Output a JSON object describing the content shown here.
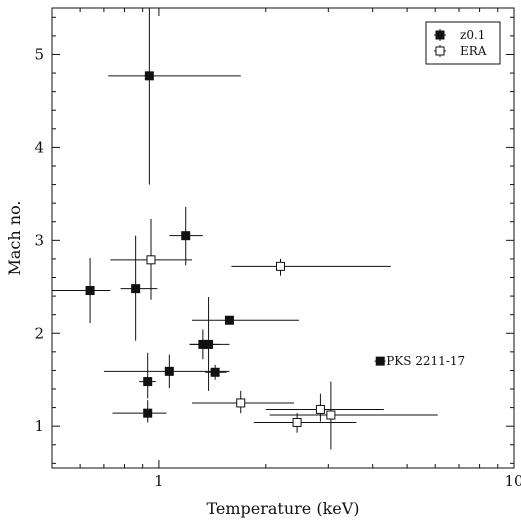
{
  "chart_data": {
    "type": "scatter",
    "xlabel": "Temperature (keV)",
    "ylabel": "Mach no.",
    "xscale": "log",
    "xlim": [
      0.5,
      10
    ],
    "ylim": [
      0.55,
      5.5
    ],
    "xticks": [
      {
        "value": 1,
        "label": "1"
      },
      {
        "value": 10,
        "label": "10"
      }
    ],
    "yticks": [
      {
        "value": 1,
        "label": "1"
      },
      {
        "value": 2,
        "label": "2"
      },
      {
        "value": 3,
        "label": "3"
      },
      {
        "value": 4,
        "label": "4"
      },
      {
        "value": 5,
        "label": "5"
      }
    ],
    "grid": false,
    "legend_position": "top-right",
    "series": [
      {
        "name": "z0.1",
        "marker": "filled-square",
        "color": "#111111",
        "points": [
          {
            "x": 0.94,
            "y": 4.77,
            "xerr": [
              0.72,
              1.7
            ],
            "yerr": [
              3.6,
              5.5
            ]
          },
          {
            "x": 1.19,
            "y": 3.05,
            "xerr": [
              1.07,
              1.33
            ],
            "yerr": [
              2.73,
              3.36
            ]
          },
          {
            "x": 0.64,
            "y": 2.46,
            "xerr": [
              0.5,
              0.73
            ],
            "yerr": [
              2.11,
              2.81
            ]
          },
          {
            "x": 0.86,
            "y": 2.48,
            "xerr": [
              0.78,
              0.99
            ],
            "yerr": [
              1.92,
              3.05
            ]
          },
          {
            "x": 1.58,
            "y": 2.14,
            "xerr": [
              1.24,
              2.48
            ],
            "yerr": [
              2.14,
              2.14
            ]
          },
          {
            "x": 1.33,
            "y": 1.88,
            "xerr": [
              1.22,
              1.48
            ],
            "yerr": [
              1.72,
              2.04
            ]
          },
          {
            "x": 1.38,
            "y": 1.88,
            "xerr": [
              1.22,
              1.58
            ],
            "yerr": [
              1.38,
              2.39
            ]
          },
          {
            "x": 1.07,
            "y": 1.59,
            "xerr": [
              0.7,
              1.58
            ],
            "yerr": [
              1.41,
              1.77
            ]
          },
          {
            "x": 0.93,
            "y": 1.48,
            "xerr": [
              0.88,
              0.98
            ],
            "yerr": [
              1.3,
              1.79
            ]
          },
          {
            "x": 1.44,
            "y": 1.58,
            "xerr": [
              1.35,
              1.55
            ],
            "yerr": [
              1.5,
              1.66
            ]
          },
          {
            "x": 0.93,
            "y": 1.14,
            "xerr": [
              0.74,
              1.05
            ],
            "yerr": [
              1.04,
              1.28
            ]
          }
        ]
      },
      {
        "name": "ERA",
        "marker": "open-square",
        "color": "#111111",
        "points": [
          {
            "x": 0.95,
            "y": 2.79,
            "xerr": [
              0.73,
              1.24
            ],
            "yerr": [
              2.36,
              3.23
            ]
          },
          {
            "x": 2.2,
            "y": 2.72,
            "xerr": [
              1.6,
              4.5
            ],
            "yerr": [
              2.62,
              2.8
            ]
          },
          {
            "x": 1.7,
            "y": 1.25,
            "xerr": [
              1.24,
              2.4
            ],
            "yerr": [
              1.14,
              1.38
            ]
          },
          {
            "x": 2.45,
            "y": 1.04,
            "xerr": [
              1.85,
              3.6
            ],
            "yerr": [
              0.93,
              1.14
            ]
          },
          {
            "x": 2.85,
            "y": 1.18,
            "xerr": [
              2.0,
              4.3
            ],
            "yerr": [
              1.05,
              1.35
            ]
          },
          {
            "x": 3.05,
            "y": 1.12,
            "xerr": [
              2.05,
              6.1
            ],
            "yerr": [
              0.75,
              1.48
            ]
          }
        ]
      },
      {
        "name": "PKS 2211-17",
        "marker": "filled-square",
        "color": "#111111",
        "points": [
          {
            "x": 4.2,
            "y": 1.7,
            "xerr": [
              4.05,
              4.35
            ],
            "yerr": [
              1.7,
              1.7
            ]
          }
        ]
      }
    ],
    "annotations": [
      {
        "text": "PKS 2211-17",
        "x": 4.2,
        "y": 1.7
      }
    ],
    "legend": [
      {
        "label": "z0.1",
        "marker": "filled-square"
      },
      {
        "label": "ERA",
        "marker": "open-square"
      }
    ]
  }
}
